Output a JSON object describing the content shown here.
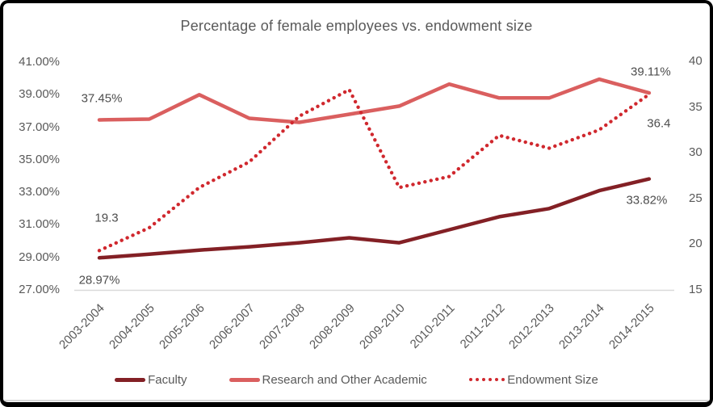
{
  "window": {
    "background": "#FFFFFF",
    "frame_color": "#000000",
    "text_color": "#595959",
    "axis_line_color": "#D9D9D9"
  },
  "chart_data": {
    "type": "line",
    "title": "Percentage of female employees vs. endowment size",
    "categories": [
      "2003-2004",
      "2004-2005",
      "2005-2006",
      "2006-2007",
      "2007-2008",
      "2008-2009",
      "2009-2010",
      "2010-2011",
      "2011-2012",
      "2012-2013",
      "2013-2014",
      "2014-2015"
    ],
    "series": [
      {
        "name": "Faculty",
        "axis": "left",
        "line_style": "solid",
        "color": "#832025",
        "values": [
          28.97,
          29.2,
          29.45,
          29.65,
          29.9,
          30.2,
          29.9,
          30.7,
          31.5,
          32.0,
          33.1,
          33.82
        ],
        "point_labels": [
          {
            "index": 0,
            "text": "28.97%",
            "dx": 0,
            "dy": 28
          },
          {
            "index": 11,
            "text": "33.82%",
            "dx": -3,
            "dy": 26
          }
        ]
      },
      {
        "name": "Research and Other Academic",
        "axis": "left",
        "line_style": "solid",
        "color": "#DA5F5F",
        "values": [
          37.45,
          37.5,
          39.0,
          37.55,
          37.3,
          37.8,
          38.3,
          39.65,
          38.8,
          38.8,
          39.95,
          39.11
        ],
        "point_labels": [
          {
            "index": 0,
            "text": "37.45%",
            "dx": 3,
            "dy": -27
          },
          {
            "index": 11,
            "text": "39.11%",
            "dx": 2,
            "dy": -26
          }
        ]
      },
      {
        "name": "Endowment Size",
        "axis": "right",
        "line_style": "dotted",
        "color": "#D0282E",
        "values": [
          19.3,
          21.8,
          26.2,
          29.0,
          34.0,
          36.9,
          26.2,
          27.4,
          31.9,
          30.5,
          32.5,
          36.4
        ],
        "point_labels": [
          {
            "index": 0,
            "text": "19.3",
            "dx": 9,
            "dy": -40
          },
          {
            "index": 11,
            "text": "36.4",
            "dx": 12,
            "dy": 36
          }
        ]
      }
    ],
    "left_axis": {
      "min": 27,
      "max": 41,
      "tick_labels": [
        "41.00%",
        "39.00%",
        "37.00%",
        "35.00%",
        "33.00%",
        "31.00%",
        "29.00%",
        "27.00%"
      ]
    },
    "right_axis": {
      "min": 15,
      "max": 40,
      "tick_labels": [
        "40",
        "35",
        "30",
        "25",
        "20",
        "15"
      ]
    },
    "gridlines": "bottom-axis-only",
    "legend_position": "bottom"
  }
}
